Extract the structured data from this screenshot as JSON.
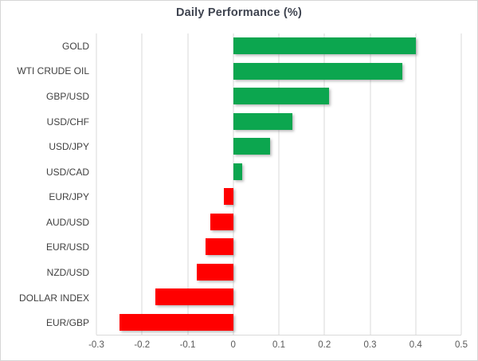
{
  "chart_data": {
    "type": "bar",
    "orientation": "horizontal",
    "title": "Daily Performance (%)",
    "xlabel": "",
    "ylabel": "",
    "categories": [
      "GOLD",
      "WTI CRUDE OIL",
      "GBP/USD",
      "USD/CHF",
      "USD/JPY",
      "USD/CAD",
      "EUR/JPY",
      "AUD/USD",
      "EUR/USD",
      "NZD/USD",
      "DOLLAR INDEX",
      "EUR/GBP"
    ],
    "values": [
      0.4,
      0.37,
      0.21,
      0.13,
      0.08,
      0.02,
      -0.02,
      -0.05,
      -0.06,
      -0.08,
      -0.17,
      -0.25
    ],
    "xlim": [
      -0.3,
      0.5
    ],
    "xticks": [
      -0.3,
      -0.2,
      -0.1,
      0,
      0.1,
      0.2,
      0.3,
      0.4,
      0.5
    ],
    "xtick_labels": [
      "-0.3",
      "-0.2",
      "-0.1",
      "0",
      "0.1",
      "0.2",
      "0.3",
      "0.4",
      "0.5"
    ],
    "grid": true,
    "legend": "none",
    "positive_color": "#0CA64F",
    "negative_color": "#FF0000"
  },
  "colors": {
    "title_text": "#3F4450",
    "category_text": "#404040",
    "tick_text": "#595959",
    "gridline": "#D9D9D9",
    "border": "#D6D6D6",
    "background": "#FFFFFF"
  }
}
